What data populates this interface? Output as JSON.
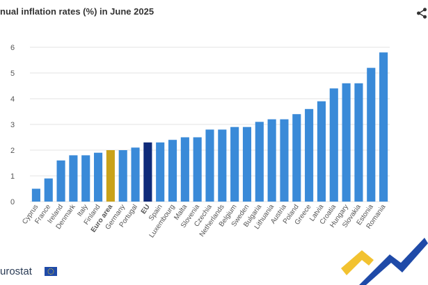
{
  "chart_data": {
    "type": "bar",
    "title": "nual inflation rates (%) in June 2025",
    "categories": [
      "Cyprus",
      "France",
      "Ireland",
      "Denmark",
      "Italy",
      "Finland",
      "Euro area",
      "Germany",
      "Portugal",
      "EU",
      "Spain",
      "Luxembourg",
      "Malta",
      "Slovenia",
      "Czechia",
      "Netherlands",
      "Belgium",
      "Sweden",
      "Bulgaria",
      "Lithuania",
      "Austria",
      "Poland",
      "Greece",
      "Latvia",
      "Croatia",
      "Hungary",
      "Slovakia",
      "Estonia",
      "Romania"
    ],
    "values": [
      0.5,
      0.9,
      1.6,
      1.8,
      1.8,
      1.9,
      2.0,
      2.0,
      2.1,
      2.3,
      2.3,
      2.4,
      2.5,
      2.5,
      2.8,
      2.8,
      2.9,
      2.9,
      3.1,
      3.2,
      3.2,
      3.4,
      3.6,
      3.9,
      4.4,
      4.6,
      4.6,
      5.2,
      5.8
    ],
    "highlight": {
      "Euro area": "#c9a21a",
      "EU": "#0f2b7a"
    },
    "bold_categories": [
      "Euro area",
      "EU"
    ],
    "bar_color": "#3a8ad8",
    "ylim": [
      0,
      6
    ],
    "yticks": [
      0,
      1,
      2,
      3,
      4,
      5,
      6
    ],
    "grid": true,
    "xlabel": "",
    "ylabel": ""
  },
  "branding": {
    "name": "urostat"
  },
  "icons": {
    "share": "share-icon",
    "flag": "eu-flag-icon"
  }
}
